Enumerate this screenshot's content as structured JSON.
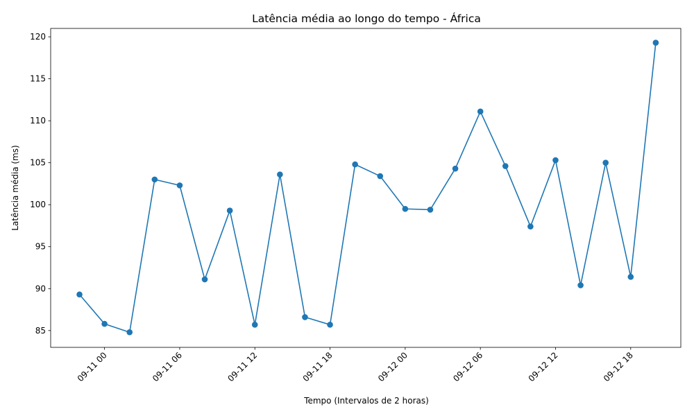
{
  "chart_data": {
    "type": "line",
    "title": "Latência média ao longo do tempo - África",
    "xlabel": "Tempo (Intervalos de 2 horas)",
    "ylabel": "Latência média (ms)",
    "x_tick_labels": [
      "09-11 00",
      "09-11 06",
      "09-11 12",
      "09-11 18",
      "09-12 00",
      "09-12 06",
      "09-12 12",
      "09-12 18"
    ],
    "y_ticks": [
      85,
      90,
      95,
      100,
      105,
      110,
      115,
      120
    ],
    "ylim": [
      83,
      121
    ],
    "xlim_hours": [
      -4.3,
      46.0
    ],
    "grid": false,
    "color": "#1f77b4",
    "series": [
      {
        "marker": "circle",
        "x_hours": [
          -2,
          0,
          2,
          4,
          6,
          8,
          10,
          12,
          14,
          16,
          18,
          20,
          22,
          24,
          26,
          28,
          30,
          32,
          34,
          36,
          38,
          40,
          42,
          44
        ],
        "values": [
          89.3,
          85.8,
          84.8,
          103.0,
          102.3,
          91.1,
          99.3,
          85.7,
          103.6,
          86.6,
          85.7,
          104.8,
          103.4,
          99.5,
          99.4,
          104.3,
          111.1,
          104.6,
          97.4,
          105.3,
          90.4,
          105.0,
          91.4,
          119.3
        ]
      }
    ]
  }
}
